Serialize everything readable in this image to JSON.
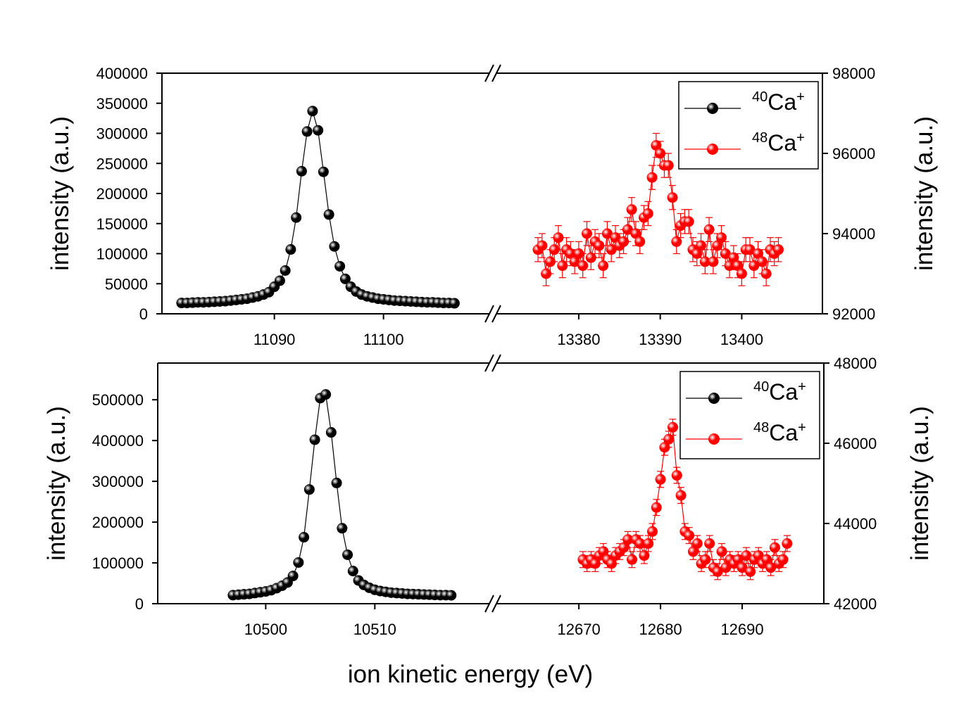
{
  "chart_data": [
    {
      "type": "scatter",
      "ylabel": "intensity (a.u.)",
      "y2label": "intensity (a.u.)",
      "xlim": [
        11079.7,
        11109.7
      ],
      "xticks": [
        11090,
        11100
      ],
      "x2lim": [
        13369.9,
        13409.9
      ],
      "x2ticks": [
        13380,
        13390,
        13400
      ],
      "ylim": [
        0,
        400000
      ],
      "yticks": [
        0,
        50000,
        100000,
        150000,
        200000,
        250000,
        300000,
        350000,
        400000
      ],
      "y2lim": [
        92000,
        98000
      ],
      "y2ticks": [
        92000,
        94000,
        96000,
        98000
      ],
      "legend": "upper right",
      "series": [
        {
          "name": "40Ca+",
          "color": "#000000",
          "x": [
            11081.5,
            11082,
            11082.5,
            11083,
            11083.5,
            11084,
            11084.5,
            11085,
            11085.5,
            11086,
            11086.5,
            11087,
            11087.5,
            11088,
            11088.5,
            11089,
            11089.5,
            11090,
            11090.5,
            11091,
            11091.5,
            11092,
            11092.5,
            11093,
            11093.5,
            11094,
            11094.5,
            11095,
            11095.5,
            11096,
            11096.5,
            11097,
            11097.5,
            11098,
            11098.5,
            11099,
            11099.5,
            11100,
            11100.5,
            11101,
            11101.5,
            11102,
            11102.5,
            11103,
            11103.5,
            11104,
            11104.5,
            11105,
            11105.5,
            11106,
            11106.5
          ],
          "values": [
            18000,
            18000,
            18500,
            19000,
            19000,
            19500,
            20000,
            20500,
            21000,
            22000,
            23000,
            24000,
            25000,
            27000,
            29000,
            32000,
            36000,
            45000,
            55000,
            72000,
            107000,
            160000,
            237000,
            303000,
            337000,
            305000,
            236000,
            165000,
            112000,
            79000,
            58000,
            45000,
            37000,
            32000,
            29000,
            27000,
            25000,
            24000,
            23000,
            22000,
            21500,
            21000,
            20500,
            20000,
            19500,
            19000,
            19000,
            18500,
            18000,
            18000,
            17500
          ]
        },
        {
          "name": "48Ca+",
          "color": "#ff0000",
          "axis": "y2",
          "x": [
            13375,
            13375.5,
            13376,
            13376.5,
            13377,
            13377.5,
            13378,
            13378.5,
            13379,
            13379.5,
            13380,
            13380.5,
            13381,
            13381.5,
            13382,
            13382.5,
            13383,
            13383.5,
            13384,
            13384.5,
            13385,
            13385.5,
            13386,
            13386.5,
            13387,
            13387.5,
            13388,
            13388.5,
            13389,
            13389.5,
            13390,
            13390.5,
            13391,
            13391.5,
            13392,
            13392.5,
            13393,
            13393.5,
            13394,
            13394.5,
            13395,
            13395.5,
            13396,
            13396.5,
            13397,
            13397.5,
            13398,
            13398.5,
            13399,
            13399.5,
            13400,
            13400.5,
            13401,
            13401.5,
            13402,
            13402.5,
            13403,
            13403.5,
            13404,
            13404.5
          ],
          "values": [
            93600,
            93700,
            93000,
            93300,
            93600,
            93900,
            93200,
            93600,
            93500,
            93300,
            93500,
            93200,
            94000,
            93400,
            93800,
            93700,
            93200,
            94000,
            93600,
            93900,
            93700,
            93800,
            94100,
            94600,
            94000,
            93800,
            94400,
            94500,
            95400,
            96200,
            96000,
            95700,
            95700,
            94900,
            93800,
            94200,
            94300,
            94300,
            93600,
            93500,
            93700,
            93300,
            94100,
            93300,
            93700,
            93900,
            93500,
            93200,
            93400,
            93200,
            93000,
            93600,
            93600,
            93200,
            93500,
            93300,
            93000,
            93600,
            93500,
            93600
          ],
          "errors": [
            300,
            300,
            300,
            300,
            300,
            300,
            300,
            300,
            300,
            300,
            300,
            300,
            300,
            300,
            300,
            300,
            300,
            300,
            300,
            300,
            300,
            300,
            300,
            300,
            300,
            300,
            300,
            300,
            300,
            300,
            300,
            300,
            300,
            300,
            300,
            300,
            300,
            300,
            300,
            300,
            300,
            300,
            300,
            300,
            300,
            300,
            300,
            300,
            300,
            300,
            300,
            300,
            300,
            300,
            300,
            300,
            300,
            300,
            300,
            300
          ]
        }
      ]
    },
    {
      "type": "scatter",
      "ylabel": "intensity (a.u.)",
      "y2label": "intensity (a.u.)",
      "xlabel": "ion kinetic energy (eV)",
      "xlim": [
        10490.1,
        10520.5
      ],
      "xticks": [
        10500,
        10510
      ],
      "x2lim": [
        12659.9,
        12700
      ],
      "x2ticks": [
        12670,
        12680,
        12690
      ],
      "ylim": [
        0,
        590000
      ],
      "yticks": [
        0,
        100000,
        200000,
        300000,
        400000,
        500000
      ],
      "y2lim": [
        42000,
        48000
      ],
      "y2ticks": [
        42000,
        44000,
        46000,
        48000
      ],
      "legend": "upper right",
      "series": [
        {
          "name": "40Ca+",
          "color": "#000000",
          "x": [
            10497,
            10497.5,
            10498,
            10498.5,
            10499,
            10499.5,
            10500,
            10500.5,
            10501,
            10501.5,
            10502,
            10502.5,
            10503,
            10503.5,
            10504,
            10504.5,
            10505,
            10505.5,
            10506,
            10506.5,
            10507,
            10507.5,
            10508,
            10508.5,
            10509,
            10509.5,
            10510,
            10510.5,
            10511,
            10511.5,
            10512,
            10512.5,
            10513,
            10513.5,
            10514,
            10514.5,
            10515,
            10515.5,
            10516,
            10516.5,
            10517
          ],
          "values": [
            21000,
            22000,
            23000,
            24000,
            26000,
            28000,
            30000,
            33000,
            38000,
            44000,
            52000,
            68000,
            101000,
            163000,
            280000,
            402000,
            504000,
            513000,
            420000,
            296000,
            185000,
            120000,
            80000,
            57000,
            46000,
            39000,
            34000,
            31000,
            29000,
            27000,
            26000,
            25000,
            24000,
            23500,
            23000,
            22500,
            22000,
            21500,
            21000,
            21000,
            20500
          ]
        },
        {
          "name": "48Ca+",
          "color": "#ff0000",
          "axis": "y2",
          "x": [
            12670.5,
            12671,
            12671.5,
            12672,
            12672.5,
            12673,
            12673.5,
            12674,
            12674.5,
            12675,
            12675.5,
            12676,
            12676.5,
            12677,
            12677.5,
            12678,
            12678.5,
            12679,
            12679.5,
            12680,
            12680.5,
            12681,
            12681.5,
            12682,
            12682.5,
            12683,
            12683.5,
            12684,
            12684.5,
            12685,
            12685.5,
            12686,
            12686.5,
            12687,
            12687.5,
            12688,
            12688.5,
            12689,
            12689.5,
            12690,
            12690.5,
            12691,
            12691.5,
            12692,
            12692.5,
            12693,
            12693.5,
            12694,
            12694.5,
            12695,
            12695.5
          ],
          "values": [
            43100,
            43000,
            43100,
            43000,
            43200,
            43300,
            43100,
            43000,
            43200,
            43300,
            43400,
            43600,
            43100,
            43600,
            43500,
            43200,
            43500,
            43800,
            44400,
            45100,
            45900,
            46100,
            46400,
            45200,
            44700,
            43800,
            43700,
            43300,
            43500,
            43000,
            43100,
            43500,
            42900,
            42800,
            43300,
            42900,
            43100,
            43000,
            43100,
            42900,
            43200,
            42800,
            43100,
            43200,
            43000,
            43100,
            42900,
            43400,
            43000,
            43100,
            43500
          ],
          "errors": [
            200,
            200,
            200,
            200,
            200,
            200,
            200,
            200,
            200,
            200,
            200,
            200,
            200,
            200,
            200,
            200,
            200,
            200,
            200,
            200,
            200,
            200,
            200,
            200,
            200,
            200,
            200,
            200,
            200,
            200,
            200,
            200,
            200,
            200,
            200,
            200,
            200,
            200,
            200,
            200,
            200,
            200,
            200,
            200,
            200,
            200,
            200,
            200,
            200,
            200,
            200
          ]
        }
      ]
    }
  ]
}
